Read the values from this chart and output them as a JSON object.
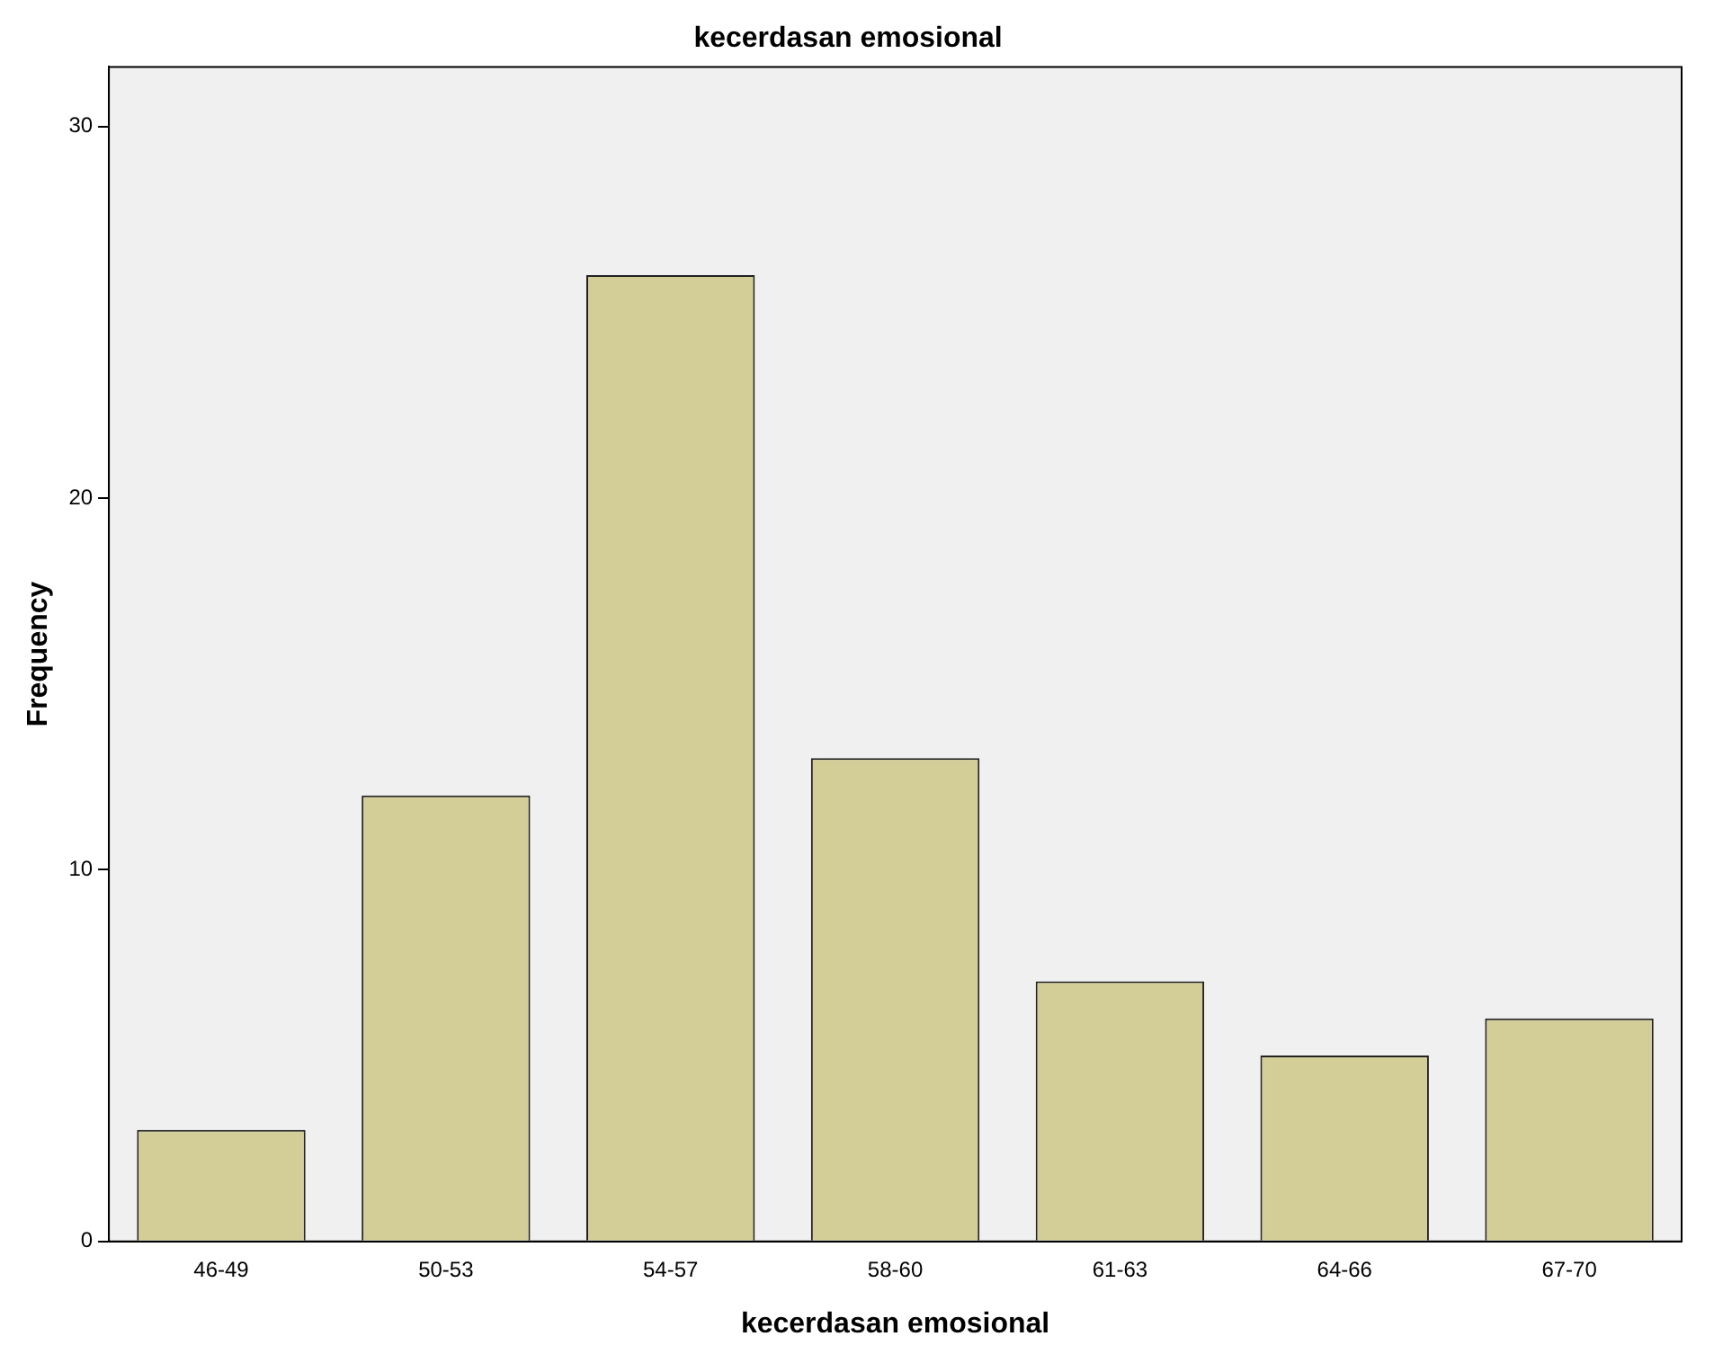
{
  "chart_data": {
    "type": "bar",
    "title": "kecerdasan emosional",
    "xlabel": "kecerdasan emosional",
    "ylabel": "Frequency",
    "categories": [
      "46-49",
      "50-53",
      "54-57",
      "58-60",
      "61-63",
      "64-66",
      "67-70"
    ],
    "values": [
      3,
      12,
      26,
      13,
      7,
      5,
      6
    ],
    "color": "#d3ce97",
    "ylim": [
      0,
      31.6
    ],
    "yticks": [
      0,
      10,
      20,
      30
    ],
    "grid": false,
    "legend": false
  }
}
